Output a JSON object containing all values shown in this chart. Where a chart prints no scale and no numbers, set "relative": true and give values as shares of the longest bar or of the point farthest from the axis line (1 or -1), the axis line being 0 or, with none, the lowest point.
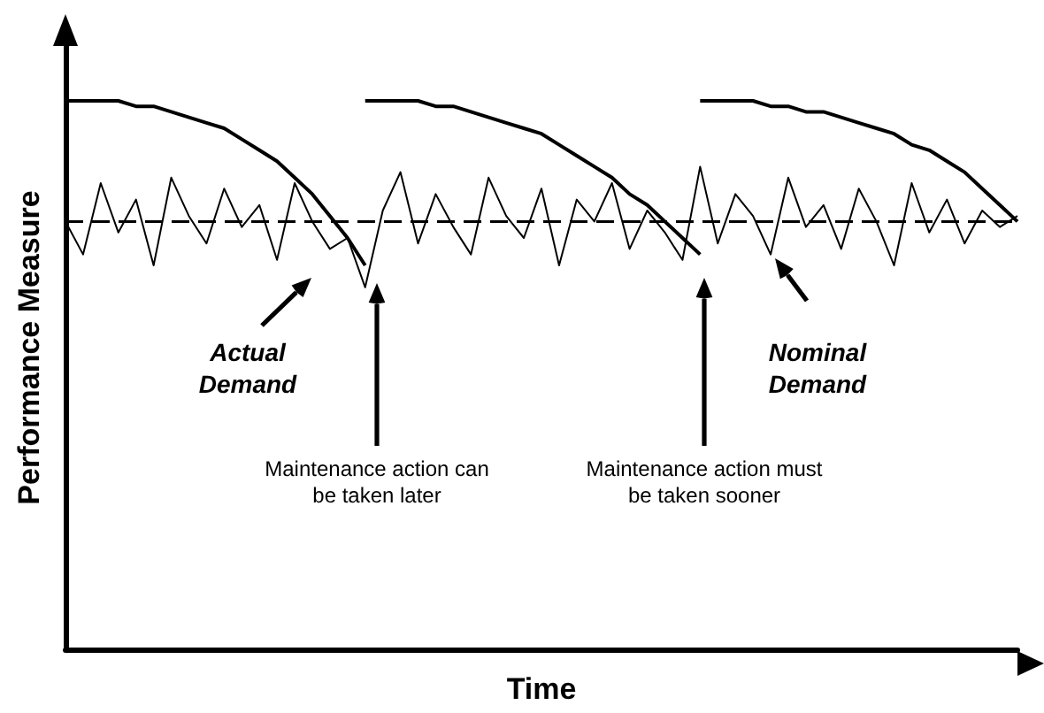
{
  "chart_data": {
    "type": "line",
    "relative": true,
    "xlabel": "Time",
    "ylabel": "Performance Measure",
    "grid": false,
    "marker": "none",
    "categories": [
      null,
      null,
      null,
      null,
      null,
      null,
      null,
      null,
      null,
      null,
      null,
      null,
      null,
      null,
      null,
      null,
      null,
      null,
      null,
      null,
      null,
      null,
      null,
      null,
      null,
      null,
      null,
      null,
      null,
      null,
      null,
      null,
      null,
      null,
      null,
      null,
      null,
      null,
      null,
      null,
      null,
      null,
      null,
      null,
      null,
      null,
      null,
      null,
      null,
      null,
      null,
      null,
      null,
      null,
      null
    ],
    "series": [
      {
        "color": "#000000",
        "line_style": "solid",
        "values": [
          1.0,
          1.0,
          1.0,
          1.0,
          0.99,
          0.99,
          0.98,
          0.97,
          0.96,
          0.95,
          0.93,
          0.91,
          0.89,
          0.86,
          0.83,
          0.79,
          0.75,
          0.7,
          null,
          null,
          null,
          null,
          null,
          null,
          null,
          null,
          null,
          null,
          null,
          null,
          null,
          null,
          null,
          null,
          null,
          null,
          null,
          null,
          null,
          null,
          null,
          null,
          null,
          null,
          null,
          null,
          null,
          null,
          null,
          null,
          null,
          null,
          null,
          null,
          null
        ]
      },
      {
        "color": "#000000",
        "line_style": "solid",
        "values": [
          null,
          null,
          null,
          null,
          null,
          null,
          null,
          null,
          null,
          null,
          null,
          null,
          null,
          null,
          null,
          null,
          null,
          1.0,
          1.0,
          1.0,
          1.0,
          0.99,
          0.99,
          0.98,
          0.97,
          0.96,
          0.95,
          0.94,
          0.92,
          0.9,
          0.88,
          0.86,
          0.83,
          0.81,
          0.78,
          0.75,
          0.72,
          null,
          null,
          null,
          null,
          null,
          null,
          null,
          null,
          null,
          null,
          null,
          null,
          null,
          null,
          null,
          null,
          null,
          null
        ]
      },
      {
        "color": "#000000",
        "line_style": "solid",
        "values": [
          null,
          null,
          null,
          null,
          null,
          null,
          null,
          null,
          null,
          null,
          null,
          null,
          null,
          null,
          null,
          null,
          null,
          null,
          null,
          null,
          null,
          null,
          null,
          null,
          null,
          null,
          null,
          null,
          null,
          null,
          null,
          null,
          null,
          null,
          null,
          null,
          1.0,
          1.0,
          1.0,
          1.0,
          0.99,
          0.99,
          0.98,
          0.98,
          0.97,
          0.96,
          0.95,
          0.94,
          0.92,
          0.91,
          0.89,
          0.87,
          0.84,
          0.81,
          0.78
        ]
      },
      {
        "color": "#000000",
        "line_style": "dashed",
        "values": [
          0.78,
          0.78,
          0.78,
          0.78,
          0.78,
          0.78,
          0.78,
          0.78,
          0.78,
          0.78,
          0.78,
          0.78,
          0.78,
          0.78,
          0.78,
          0.78,
          0.78,
          0.78,
          0.78,
          0.78,
          0.78,
          0.78,
          0.78,
          0.78,
          0.78,
          0.78,
          0.78,
          0.78,
          0.78,
          0.78,
          0.78,
          0.78,
          0.78,
          0.78,
          0.78,
          0.78,
          0.78,
          0.78,
          0.78,
          0.78,
          0.78,
          0.78,
          0.78,
          0.78,
          0.78,
          0.78,
          0.78,
          0.78,
          0.78,
          0.78,
          0.78,
          0.78,
          0.78,
          0.78,
          0.78
        ]
      },
      {
        "color": "#000000",
        "line_style": "solid",
        "values": [
          0.78,
          0.72,
          0.85,
          0.76,
          0.82,
          0.7,
          0.86,
          0.79,
          0.74,
          0.84,
          0.77,
          0.81,
          0.71,
          0.85,
          0.78,
          0.73,
          0.75,
          0.66,
          0.8,
          0.87,
          0.74,
          0.83,
          0.77,
          0.72,
          0.86,
          0.79,
          0.75,
          0.84,
          0.7,
          0.82,
          0.78,
          0.85,
          0.73,
          0.8,
          0.76,
          0.71,
          0.88,
          0.74,
          0.83,
          0.79,
          0.72,
          0.86,
          0.77,
          0.81,
          0.73,
          0.84,
          0.78,
          0.7,
          0.85,
          0.76,
          0.82,
          0.74,
          0.8,
          0.77,
          0.79
        ]
      }
    ],
    "annotations": [
      "Actual Demand",
      "Nominal Demand",
      "Maintenance action can be taken later",
      "Maintenance action must be taken sooner"
    ]
  }
}
